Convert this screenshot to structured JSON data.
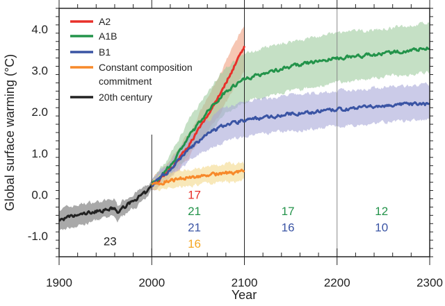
{
  "chart_data": {
    "type": "line",
    "title": "",
    "xlabel": "Year",
    "ylabel": "Global surface warming (°C)",
    "xlim": [
      1900,
      2300
    ],
    "ylim": [
      -1.5,
      4.5
    ],
    "xticks": [
      1900,
      2000,
      2100,
      2200,
      2300
    ],
    "xtick_labels": [
      "1900",
      "2000",
      "2100",
      "2200",
      "2300"
    ],
    "yticks": [
      -1.0,
      0.0,
      1.0,
      2.0,
      3.0,
      4.0
    ],
    "ytick_labels": [
      "-1.0",
      "0.0",
      "1.0",
      "2.0",
      "3.0",
      "4.0"
    ],
    "grid": false,
    "legend_position": "top-left",
    "vertical_lines": [
      2000,
      2100,
      2200
    ],
    "series": [
      {
        "name": "20th century",
        "color": "#222222",
        "band_color": "#9a9a9a",
        "x": [
          1900,
          1910,
          1920,
          1930,
          1940,
          1950,
          1960,
          1963,
          1970,
          1980,
          1990,
          1995,
          2000
        ],
        "y": [
          -0.62,
          -0.55,
          -0.5,
          -0.45,
          -0.4,
          -0.37,
          -0.33,
          -0.45,
          -0.3,
          -0.15,
          0.0,
          0.05,
          0.22
        ],
        "lower": [
          -0.9,
          -0.8,
          -0.75,
          -0.7,
          -0.62,
          -0.58,
          -0.53,
          -0.65,
          -0.48,
          -0.33,
          -0.15,
          -0.1,
          0.1
        ],
        "upper": [
          -0.35,
          -0.3,
          -0.25,
          -0.2,
          -0.17,
          -0.15,
          -0.12,
          -0.25,
          -0.12,
          0.02,
          0.15,
          0.2,
          0.35
        ]
      },
      {
        "name": "A2",
        "color": "#e8302a",
        "band_color": "#f0a080",
        "x": [
          2000,
          2020,
          2040,
          2060,
          2080,
          2100
        ],
        "y": [
          0.22,
          0.6,
          1.2,
          1.9,
          2.7,
          3.6
        ],
        "lower": [
          0.12,
          0.4,
          0.9,
          1.5,
          2.2,
          3.0
        ],
        "upper": [
          0.35,
          0.8,
          1.5,
          2.3,
          3.2,
          4.1
        ]
      },
      {
        "name": "A1B",
        "color": "#23934a",
        "band_color": "#9fcc9f",
        "x": [
          2000,
          2020,
          2040,
          2060,
          2080,
          2100,
          2150,
          2200,
          2250,
          2300
        ],
        "y": [
          0.22,
          0.7,
          1.4,
          2.0,
          2.5,
          2.8,
          3.1,
          3.3,
          3.4,
          3.55
        ],
        "lower": [
          0.12,
          0.45,
          1.0,
          1.5,
          1.95,
          2.25,
          2.5,
          2.7,
          2.85,
          2.95
        ],
        "upper": [
          0.35,
          0.95,
          1.8,
          2.5,
          3.05,
          3.4,
          3.7,
          3.9,
          4.0,
          4.15
        ]
      },
      {
        "name": "B1",
        "color": "#3a54a4",
        "band_color": "#a9a8d8",
        "x": [
          2000,
          2020,
          2040,
          2060,
          2080,
          2100,
          2150,
          2200,
          2250,
          2300
        ],
        "y": [
          0.22,
          0.6,
          1.1,
          1.45,
          1.7,
          1.8,
          1.95,
          2.05,
          2.15,
          2.2
        ],
        "lower": [
          0.12,
          0.4,
          0.8,
          1.1,
          1.3,
          1.4,
          1.55,
          1.65,
          1.75,
          1.8
        ],
        "upper": [
          0.35,
          0.8,
          1.4,
          1.8,
          2.1,
          2.25,
          2.4,
          2.5,
          2.6,
          2.65
        ]
      },
      {
        "name": "Constant composition commitment",
        "color": "#f7892a",
        "band_color": "#f3d98a",
        "x": [
          2000,
          2020,
          2040,
          2060,
          2080,
          2100
        ],
        "y": [
          0.22,
          0.35,
          0.42,
          0.47,
          0.52,
          0.56
        ],
        "lower": [
          0.12,
          0.15,
          0.22,
          0.27,
          0.3,
          0.35
        ],
        "upper": [
          0.35,
          0.55,
          0.62,
          0.68,
          0.73,
          0.78
        ]
      }
    ],
    "legend": [
      {
        "label": "A2",
        "color": "#e8302a"
      },
      {
        "label": "A1B",
        "color": "#23934a"
      },
      {
        "label": "B1",
        "color": "#3a54a4"
      },
      {
        "label": "Constant composition",
        "label2": "commitment",
        "color": "#f7892a"
      },
      {
        "label": "20th century",
        "color": "#222222"
      }
    ],
    "annotations": [
      {
        "text": "23",
        "x": 1955,
        "y": -1.12,
        "color": "#222222"
      },
      {
        "text": "17",
        "x": 2046,
        "y": 0.0,
        "color": "#e8302a"
      },
      {
        "text": "21",
        "x": 2046,
        "y": -0.39,
        "color": "#23934a"
      },
      {
        "text": "21",
        "x": 2046,
        "y": -0.79,
        "color": "#3a54a4"
      },
      {
        "text": "16",
        "x": 2046,
        "y": -1.18,
        "color": "#f5a623"
      },
      {
        "text": "17",
        "x": 2147,
        "y": -0.39,
        "color": "#23934a"
      },
      {
        "text": "16",
        "x": 2147,
        "y": -0.79,
        "color": "#3a54a4"
      },
      {
        "text": "12",
        "x": 2248,
        "y": -0.39,
        "color": "#23934a"
      },
      {
        "text": "10",
        "x": 2248,
        "y": -0.79,
        "color": "#3a54a4"
      }
    ]
  }
}
